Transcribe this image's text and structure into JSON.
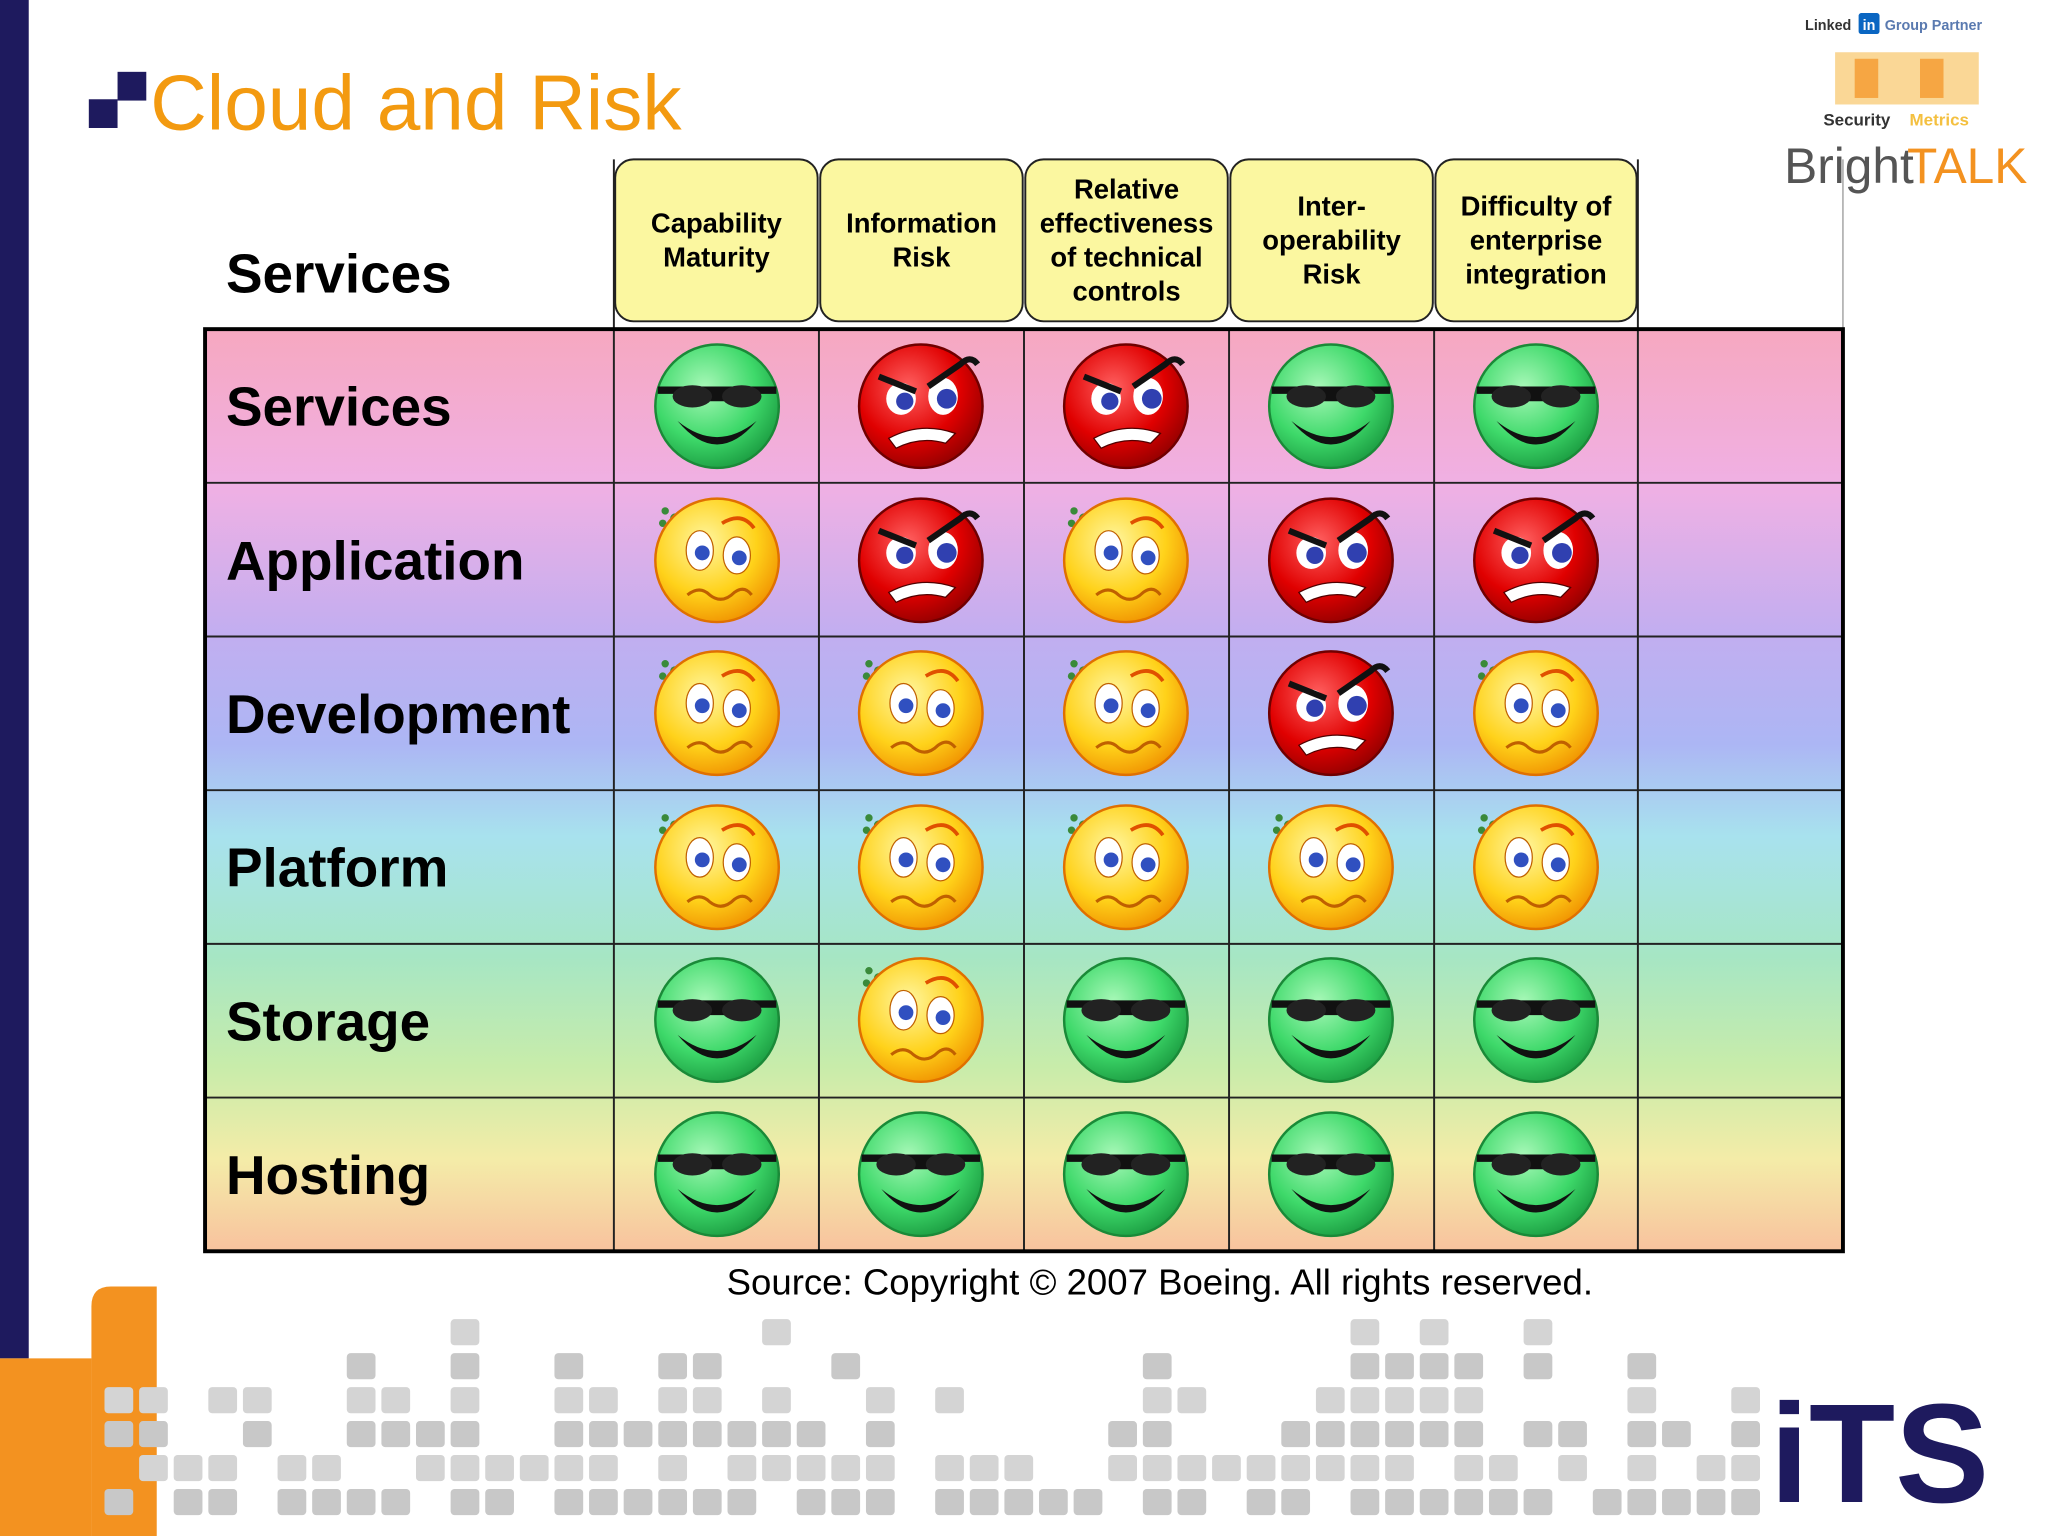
{
  "title": "Cloud and Risk",
  "corner": "Services",
  "columns": [
    [
      "Capability",
      "Maturity"
    ],
    [
      "Information",
      "Risk"
    ],
    [
      "Relative",
      "effectiveness",
      "of technical",
      "controls"
    ],
    [
      "Inter-",
      "operability",
      "Risk"
    ],
    [
      "Difficulty of",
      "enterprise",
      "integration"
    ]
  ],
  "rows": [
    "Services",
    "Application",
    "Development",
    "Platform",
    "Storage",
    "Hosting"
  ],
  "source": "Source: Copyright © 2007 Boeing. All rights reserved.",
  "logos": {
    "linked": "Linked",
    "in": "in",
    "partner": "Group Partner",
    "security": "Security",
    "metrics": "Metrics",
    "bright": "Bright",
    "talk": "TALK",
    "its": "iTS"
  }
}
